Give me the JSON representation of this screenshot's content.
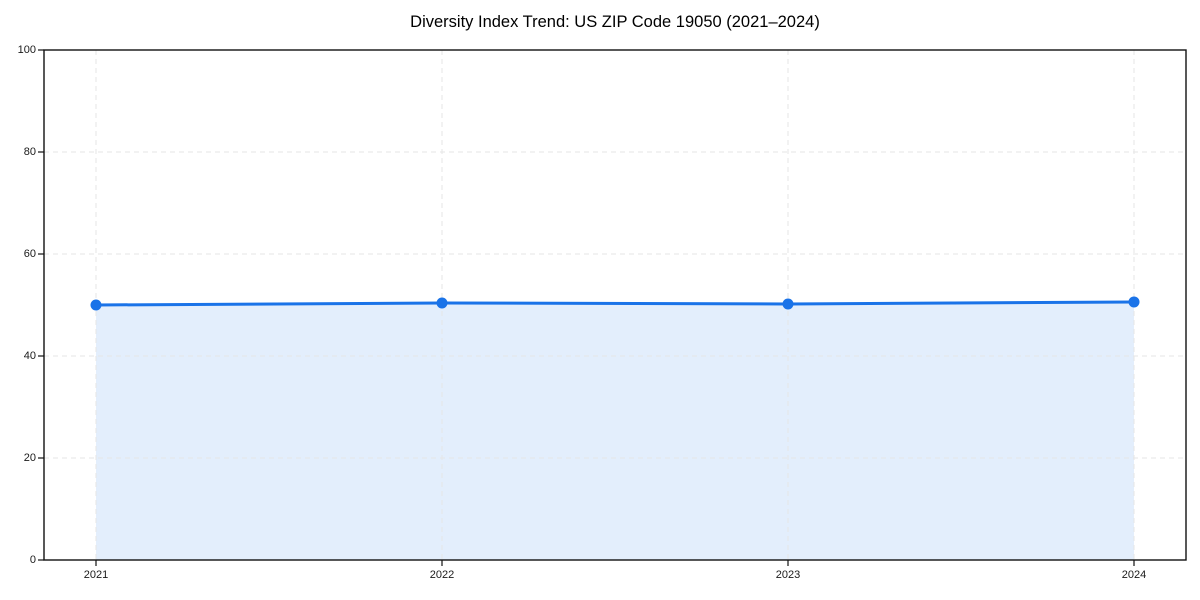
{
  "figure": {
    "background": "#ffffff"
  },
  "chart_data": {
    "type": "line",
    "title": "Diversity Index Trend: US ZIP Code 19050 (2021–2024)",
    "categories": [
      "2021",
      "2022",
      "2023",
      "2024"
    ],
    "series": [
      {
        "name": "Diversity Index",
        "values": [
          50.0,
          50.4,
          50.2,
          50.6
        ]
      }
    ],
    "xlabel": "",
    "ylabel": "",
    "ylim": [
      0,
      100
    ],
    "yticks": [
      0,
      20,
      40,
      60,
      80,
      100
    ],
    "grid": "dashed",
    "legend": "none",
    "marker": "circle",
    "area_fill": true,
    "colors": {
      "line": "#1a73e8",
      "marker": "#1a73e8",
      "fill": "rgba(26,115,232,0.12)",
      "grid": "#e6e6e6",
      "spine": "#111111",
      "tick": "#111111",
      "text": "#1a1a1a"
    }
  }
}
